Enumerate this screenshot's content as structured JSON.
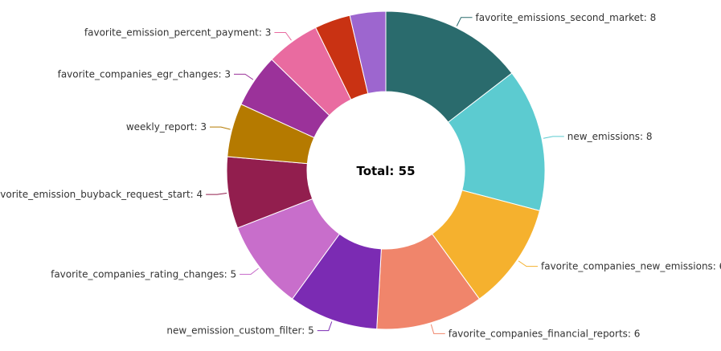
{
  "chart_data": {
    "type": "pie",
    "donut": true,
    "center_label": "Total: 55",
    "total": 55,
    "slices": [
      {
        "label": "favorite_emissions_second_market",
        "value": 8,
        "color": "#2a6b6d"
      },
      {
        "label": "new_emissions",
        "value": 8,
        "color": "#5ccbd0"
      },
      {
        "label": "favorite_companies_new_emissions",
        "value": 6,
        "color": "#f5b12e"
      },
      {
        "label": "favorite_companies_financial_reports",
        "value": 6,
        "color": "#f0856b"
      },
      {
        "label": "new_emission_custom_filter",
        "value": 5,
        "color": "#7b2bb3"
      },
      {
        "label": "favorite_companies_rating_changes",
        "value": 5,
        "color": "#c86ecb"
      },
      {
        "label": "favorite_emission_buyback_request_start",
        "value": 4,
        "color": "#921e4e"
      },
      {
        "label": "weekly_report",
        "value": 3,
        "color": "#b57a00"
      },
      {
        "label": "favorite_companies_egr_changes",
        "value": 3,
        "color": "#9b329a"
      },
      {
        "label": "favorite_emission_percent_payment",
        "value": 3,
        "color": "#e96ba0"
      },
      {
        "label": "",
        "value": 2,
        "color": "#c93213"
      },
      {
        "label": "",
        "value": 2,
        "color": "#9d66cf"
      }
    ]
  }
}
